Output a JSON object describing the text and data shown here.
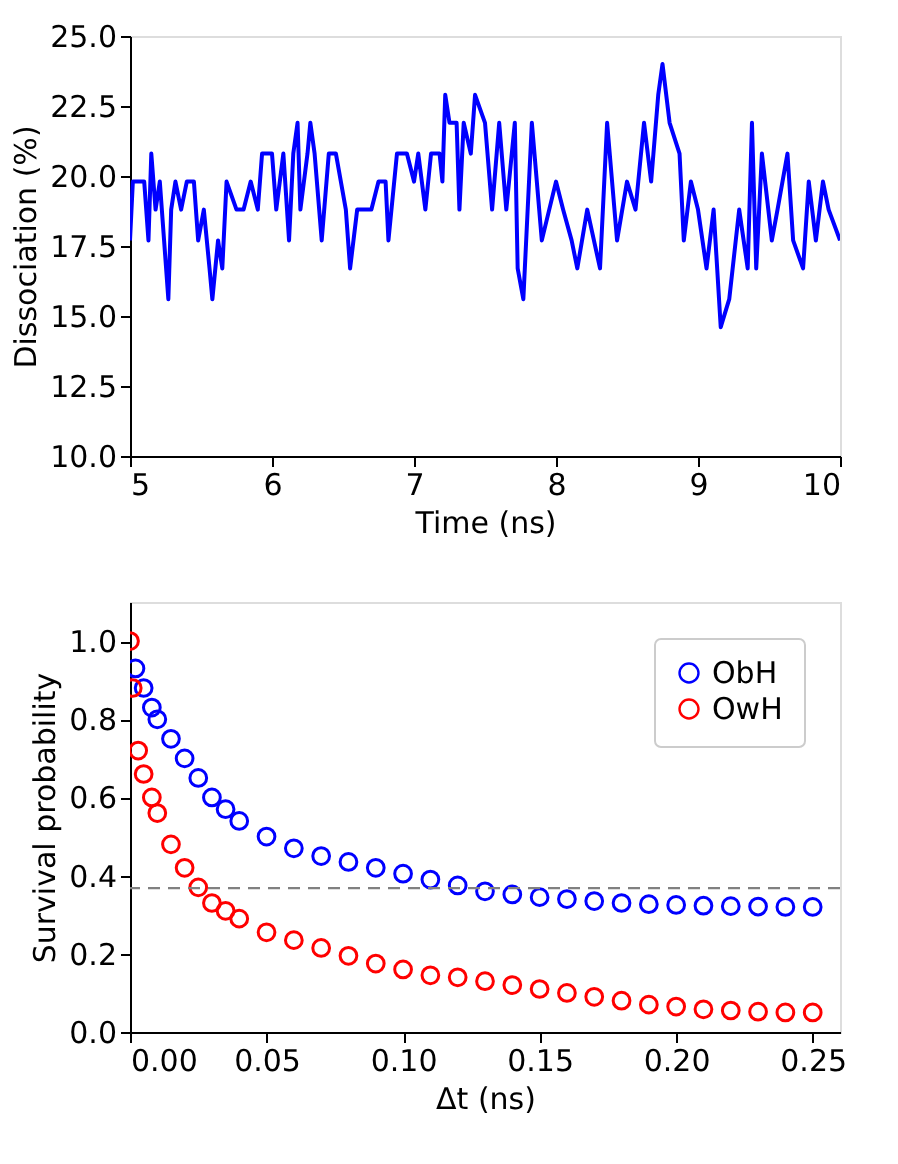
{
  "chart_data": [
    {
      "type": "line",
      "xlabel": "Time (ns)",
      "ylabel": "Dissociation (%)",
      "grid": false,
      "xlim": [
        5,
        10
      ],
      "ylim": [
        10,
        25
      ],
      "xticks": [
        5,
        6,
        7,
        8,
        9,
        10
      ],
      "yticks": [
        {
          "value": 10,
          "label": "10.0"
        },
        {
          "value": 12.5,
          "label": "12.5"
        },
        {
          "value": 15,
          "label": "15.0"
        },
        {
          "value": 17.5,
          "label": "17.5"
        },
        {
          "value": 20,
          "label": "20.0"
        },
        {
          "value": 22.5,
          "label": "22.5"
        },
        {
          "value": 25,
          "label": "25.0"
        }
      ],
      "series": [
        {
          "color": "#0000ff",
          "x": [
            5.0,
            5.02,
            5.05,
            5.1,
            5.13,
            5.15,
            5.18,
            5.21,
            5.24,
            5.27,
            5.29,
            5.32,
            5.36,
            5.4,
            5.45,
            5.48,
            5.52,
            5.56,
            5.58,
            5.62,
            5.65,
            5.68,
            5.75,
            5.8,
            5.85,
            5.9,
            5.93,
            6.0,
            6.03,
            6.08,
            6.12,
            6.15,
            6.18,
            6.2,
            6.25,
            6.27,
            6.3,
            6.35,
            6.4,
            6.45,
            6.52,
            6.55,
            6.6,
            6.7,
            6.75,
            6.8,
            6.82,
            6.88,
            6.95,
            7.0,
            7.03,
            7.08,
            7.12,
            7.18,
            7.2,
            7.22,
            7.25,
            7.3,
            7.32,
            7.35,
            7.4,
            7.43,
            7.5,
            7.55,
            7.6,
            7.65,
            7.71,
            7.73,
            7.77,
            7.83,
            7.9,
            8.0,
            8.05,
            8.11,
            8.15,
            8.22,
            8.31,
            8.36,
            8.43,
            8.5,
            8.56,
            8.62,
            8.67,
            8.72,
            8.75,
            8.8,
            8.87,
            8.9,
            8.95,
            9.0,
            9.06,
            9.11,
            9.16,
            9.22,
            9.29,
            9.35,
            9.38,
            9.41,
            9.45,
            9.52,
            9.56,
            9.63,
            9.67,
            9.74,
            9.78,
            9.83,
            9.88,
            9.92,
            10.0
          ],
          "values": [
            17.7,
            19.8,
            19.8,
            19.8,
            17.7,
            20.8,
            18.8,
            19.8,
            17.7,
            15.6,
            18.8,
            19.8,
            18.8,
            19.8,
            19.8,
            17.7,
            18.8,
            16.7,
            15.6,
            17.7,
            16.7,
            19.8,
            18.8,
            18.8,
            19.8,
            18.8,
            20.8,
            20.8,
            18.8,
            20.8,
            17.7,
            20.8,
            21.9,
            18.8,
            20.8,
            21.9,
            20.8,
            17.7,
            20.8,
            20.8,
            18.8,
            16.7,
            18.8,
            18.8,
            19.8,
            19.8,
            17.7,
            20.8,
            20.8,
            19.8,
            20.8,
            18.8,
            20.8,
            20.8,
            19.8,
            22.9,
            21.9,
            21.9,
            18.8,
            21.9,
            20.8,
            22.9,
            21.9,
            18.8,
            21.9,
            18.8,
            21.9,
            16.7,
            15.6,
            21.9,
            17.7,
            19.8,
            18.8,
            17.7,
            16.7,
            18.8,
            16.7,
            21.9,
            17.7,
            19.8,
            18.8,
            21.9,
            19.8,
            22.9,
            24.0,
            21.9,
            20.8,
            17.7,
            19.8,
            18.8,
            16.7,
            18.8,
            14.6,
            15.6,
            18.8,
            16.7,
            21.9,
            16.7,
            20.8,
            17.7,
            18.8,
            20.8,
            17.7,
            16.7,
            19.8,
            17.7,
            19.8,
            18.8,
            17.7
          ]
        }
      ]
    },
    {
      "type": "scatter",
      "xlabel": "Δt (ns)",
      "ylabel": "Survival probability",
      "grid": false,
      "marker": "circle",
      "legend": "top right",
      "xlim": [
        0,
        0.26
      ],
      "ylim": [
        0,
        1.1
      ],
      "xticks": [
        {
          "value": 0,
          "label": "0.00"
        },
        {
          "value": 0.05,
          "label": "0.05"
        },
        {
          "value": 0.1,
          "label": "0.10"
        },
        {
          "value": 0.15,
          "label": "0.15"
        },
        {
          "value": 0.2,
          "label": "0.20"
        },
        {
          "value": 0.25,
          "label": "0.25"
        }
      ],
      "yticks": [
        {
          "value": 0,
          "label": "0.0"
        },
        {
          "value": 0.2,
          "label": "0.2"
        },
        {
          "value": 0.4,
          "label": "0.4"
        },
        {
          "value": 0.6,
          "label": "0.6"
        },
        {
          "value": 0.8,
          "label": "0.8"
        },
        {
          "value": 1,
          "label": "1.0"
        }
      ],
      "ref_lines": [
        {
          "axis": "y",
          "value": 0.368,
          "color": "#808080",
          "line_style": "dashed"
        }
      ],
      "series": [
        {
          "name": "ObH",
          "color": "#0000ff",
          "x": [
            0.002,
            0.005,
            0.008,
            0.01,
            0.015,
            0.02,
            0.025,
            0.03,
            0.035,
            0.04,
            0.05,
            0.06,
            0.07,
            0.08,
            0.09,
            0.1,
            0.11,
            0.12,
            0.13,
            0.14,
            0.15,
            0.16,
            0.17,
            0.18,
            0.19,
            0.2,
            0.21,
            0.22,
            0.23,
            0.24,
            0.25
          ],
          "values": [
            0.93,
            0.88,
            0.83,
            0.8,
            0.75,
            0.7,
            0.65,
            0.6,
            0.57,
            0.54,
            0.5,
            0.47,
            0.45,
            0.435,
            0.42,
            0.405,
            0.39,
            0.375,
            0.36,
            0.352,
            0.345,
            0.34,
            0.335,
            0.33,
            0.327,
            0.325,
            0.323,
            0.322,
            0.321,
            0.32,
            0.32
          ]
        },
        {
          "name": "OwH",
          "color": "#ff0000",
          "x": [
            0,
            0.001,
            0.003,
            0.005,
            0.008,
            0.01,
            0.015,
            0.02,
            0.025,
            0.03,
            0.035,
            0.04,
            0.05,
            0.06,
            0.07,
            0.08,
            0.09,
            0.1,
            0.11,
            0.12,
            0.13,
            0.14,
            0.15,
            0.16,
            0.17,
            0.18,
            0.19,
            0.2,
            0.21,
            0.22,
            0.23,
            0.24,
            0.25
          ],
          "values": [
            1.0,
            0.88,
            0.72,
            0.66,
            0.6,
            0.56,
            0.48,
            0.42,
            0.37,
            0.33,
            0.31,
            0.29,
            0.255,
            0.235,
            0.215,
            0.195,
            0.175,
            0.16,
            0.145,
            0.14,
            0.13,
            0.12,
            0.11,
            0.1,
            0.09,
            0.08,
            0.07,
            0.065,
            0.058,
            0.055,
            0.052,
            0.05,
            0.05
          ]
        }
      ]
    }
  ]
}
